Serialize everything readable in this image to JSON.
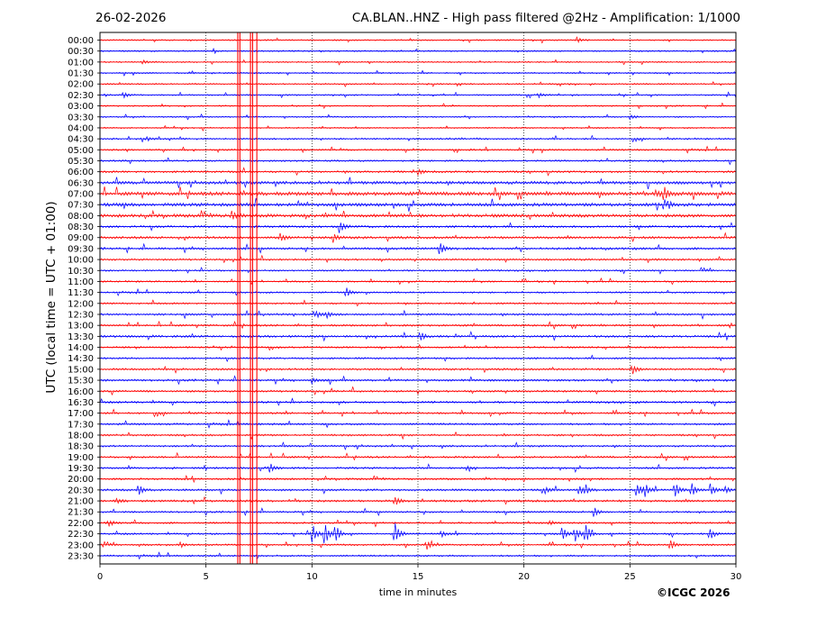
{
  "header": {
    "date": "26-02-2026",
    "title": "CA.BLAN..HNZ - High pass filtered @2Hz - Amplification: 1/1000"
  },
  "footer": {
    "copyright": "©ICGC 2026"
  },
  "chart_data": {
    "type": "line",
    "chart_kind": "helicorder",
    "xlabel": "time in minutes",
    "ylabel": "UTC (local time = UTC + 01:00)",
    "xlim": [
      0,
      30
    ],
    "xticks": [
      "0",
      "5",
      "10",
      "15",
      "20",
      "25",
      "30"
    ],
    "xgrid": "dotted vertical at 5, 10, 15, 20, 25",
    "row_labels": [
      "00:00",
      "00:30",
      "01:00",
      "01:30",
      "02:00",
      "02:30",
      "03:00",
      "03:30",
      "04:00",
      "04:30",
      "05:00",
      "05:30",
      "06:00",
      "06:30",
      "07:00",
      "07:30",
      "08:00",
      "08:30",
      "09:00",
      "09:30",
      "10:00",
      "10:30",
      "11:00",
      "11:30",
      "12:00",
      "12:30",
      "13:00",
      "13:30",
      "14:00",
      "14:30",
      "15:00",
      "15:30",
      "16:00",
      "16:30",
      "17:00",
      "17:30",
      "18:00",
      "18:30",
      "19:00",
      "19:30",
      "20:00",
      "20:30",
      "21:00",
      "21:30",
      "22:00",
      "22:30",
      "23:00",
      "23:30"
    ],
    "trace_colors": [
      "#ff0000",
      "#0000ff"
    ],
    "noise_level": [
      1,
      1,
      1,
      1,
      1,
      1,
      1,
      1,
      1,
      1.2,
      1.2,
      1.3,
      1.5,
      2.2,
      2.6,
      2.4,
      2.4,
      1.6,
      1.8,
      1.6,
      1.4,
      1.2,
      1.2,
      1.2,
      1.2,
      1.5,
      1.4,
      1.6,
      1.3,
      1.3,
      1.5,
      1.5,
      1.5,
      1.5,
      1.4,
      1.4,
      1.4,
      1.4,
      1.4,
      1.4,
      1.4,
      1.5,
      1.6,
      1.3,
      1.3,
      1.3,
      1.3,
      1.2
    ],
    "events": [
      {
        "row": 0,
        "time": 22.5,
        "amplitude": 3
      },
      {
        "row": 2,
        "time": 2.0,
        "amplitude": 3
      },
      {
        "row": 5,
        "time": 1.1,
        "amplitude": 4
      },
      {
        "row": 5,
        "time": 20.7,
        "amplitude": 3
      },
      {
        "row": 7,
        "time": 25.0,
        "amplitude": 3
      },
      {
        "row": 9,
        "time": 2.2,
        "amplitude": 3
      },
      {
        "row": 12,
        "time": 15.0,
        "amplitude": 4
      },
      {
        "row": 14,
        "time": 26.6,
        "amplitude": 9
      },
      {
        "row": 14,
        "time": 26.2,
        "amplitude": 5
      },
      {
        "row": 15,
        "time": 26.8,
        "amplitude": 5
      },
      {
        "row": 16,
        "time": 6.2,
        "amplitude": 5
      },
      {
        "row": 17,
        "time": 11.3,
        "amplitude": 8
      },
      {
        "row": 18,
        "time": 8.5,
        "amplitude": 5
      },
      {
        "row": 18,
        "time": 11.0,
        "amplitude": 5
      },
      {
        "row": 19,
        "time": 16.0,
        "amplitude": 8
      },
      {
        "row": 23,
        "time": 11.6,
        "amplitude": 6
      },
      {
        "row": 25,
        "time": 10.2,
        "amplitude": 4
      },
      {
        "row": 25,
        "time": 10.7,
        "amplitude": 4
      },
      {
        "row": 27,
        "time": 15.1,
        "amplitude": 5
      },
      {
        "row": 30,
        "time": 25.1,
        "amplitude": 6
      },
      {
        "row": 31,
        "time": 10.0,
        "amplitude": 3
      },
      {
        "row": 39,
        "time": 8.0,
        "amplitude": 6
      },
      {
        "row": 39,
        "time": 17.3,
        "amplitude": 3
      },
      {
        "row": 41,
        "time": 1.8,
        "amplitude": 7
      },
      {
        "row": 41,
        "time": 21.0,
        "amplitude": 4
      },
      {
        "row": 41,
        "time": 22.6,
        "amplitude": 7
      },
      {
        "row": 41,
        "time": 22.9,
        "amplitude": 5
      },
      {
        "row": 41,
        "time": 25.3,
        "amplitude": 9
      },
      {
        "row": 41,
        "time": 25.7,
        "amplitude": 8
      },
      {
        "row": 41,
        "time": 27.1,
        "amplitude": 9
      },
      {
        "row": 41,
        "time": 27.9,
        "amplitude": 8
      },
      {
        "row": 41,
        "time": 28.8,
        "amplitude": 8
      },
      {
        "row": 41,
        "time": 29.5,
        "amplitude": 5
      },
      {
        "row": 42,
        "time": 0.8,
        "amplitude": 3
      },
      {
        "row": 42,
        "time": 13.9,
        "amplitude": 6
      },
      {
        "row": 43,
        "time": 23.3,
        "amplitude": 6
      },
      {
        "row": 44,
        "time": 0.4,
        "amplitude": 4
      },
      {
        "row": 44,
        "time": 21.2,
        "amplitude": 3
      },
      {
        "row": 45,
        "time": 10.0,
        "amplitude": 14
      },
      {
        "row": 45,
        "time": 10.6,
        "amplitude": 13
      },
      {
        "row": 45,
        "time": 11.1,
        "amplitude": 10
      },
      {
        "row": 45,
        "time": 13.9,
        "amplitude": 14
      },
      {
        "row": 45,
        "time": 16.1,
        "amplitude": 4
      },
      {
        "row": 45,
        "time": 21.8,
        "amplitude": 8
      },
      {
        "row": 45,
        "time": 22.4,
        "amplitude": 10
      },
      {
        "row": 45,
        "time": 22.9,
        "amplitude": 12
      },
      {
        "row": 45,
        "time": 28.8,
        "amplitude": 6
      },
      {
        "row": 46,
        "time": 3.8,
        "amplitude": 3
      },
      {
        "row": 46,
        "time": 15.4,
        "amplitude": 6
      },
      {
        "row": 46,
        "time": 26.9,
        "amplitude": 7
      }
    ],
    "vertical_spike_times": [
      6.5,
      6.6,
      7.1,
      7.2,
      7.4
    ]
  }
}
